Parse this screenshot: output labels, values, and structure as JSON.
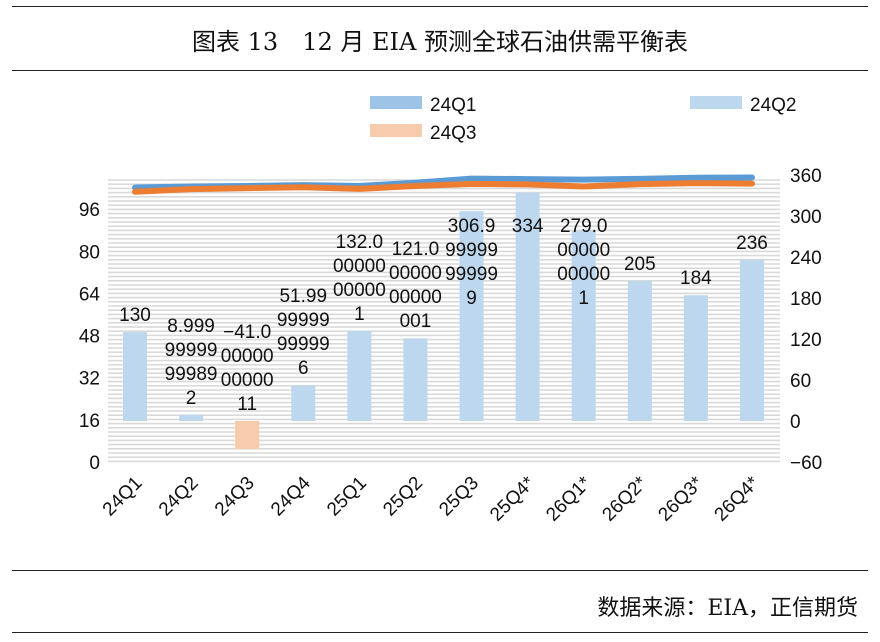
{
  "title": "图表 13　12 月 EIA 预测全球石油供需平衡表",
  "source": "数据来源：EIA，正信期货",
  "chart_data": {
    "type": "bar",
    "title": "图表 13　12 月 EIA 预测全球石油供需平衡表",
    "categories": [
      "24Q1",
      "24Q2",
      "24Q3",
      "24Q4",
      "25Q1",
      "25Q2",
      "25Q3",
      "25Q4*",
      "26Q1*",
      "26Q2*",
      "26Q3*",
      "26Q4*"
    ],
    "legend": [
      {
        "name": "24Q1",
        "color": "#9dc3e6",
        "kind": "line"
      },
      {
        "name": "24Q2",
        "color": "#bdd7ee",
        "kind": "bar"
      },
      {
        "name": "24Q3",
        "color": "#f8cbad",
        "kind": "bar"
      }
    ],
    "legend_placement": "top",
    "bars": {
      "axis": "right",
      "values": [
        130,
        8.99999999999892,
        -41.0000000000011,
        51.9999999999996,
        132.000000000001,
        121.00000000000001,
        306.999999999999,
        334,
        279.000000000001,
        205,
        184,
        236
      ],
      "labels": [
        "130",
        "8.99999999999892",
        "−41.0000000000011",
        "51.9999999999996",
        "132.000000000001",
        "121.00000000000001",
        "306.999999999999",
        "334",
        "279.000000000001",
        "205",
        "184",
        "236"
      ],
      "positive_color": "#bdd7ee",
      "negative_color": "#f8cbad"
    },
    "lines": [
      {
        "name": "24Q1",
        "axis": "left",
        "color": "#5b9bd5",
        "values": [
          104.2,
          104.6,
          104.8,
          105.1,
          104.8,
          106.0,
          107.6,
          107.4,
          107.2,
          107.5,
          107.9,
          108.0
        ]
      },
      {
        "name": "24Q3",
        "axis": "left",
        "color": "#ed7d31",
        "values": [
          102.6,
          103.6,
          104.0,
          104.3,
          103.7,
          104.8,
          105.6,
          105.4,
          104.6,
          105.5,
          105.9,
          105.7
        ]
      }
    ],
    "left_axis": {
      "ticks": [
        "0",
        "16",
        "32",
        "48",
        "64",
        "80",
        "96"
      ],
      "ylim": [
        0,
        112
      ]
    },
    "right_axis": {
      "ticks": [
        "−60",
        "0",
        "60",
        "120",
        "180",
        "240",
        "300",
        "360"
      ],
      "ylim": [
        -60,
        360
      ]
    },
    "grid": true
  }
}
